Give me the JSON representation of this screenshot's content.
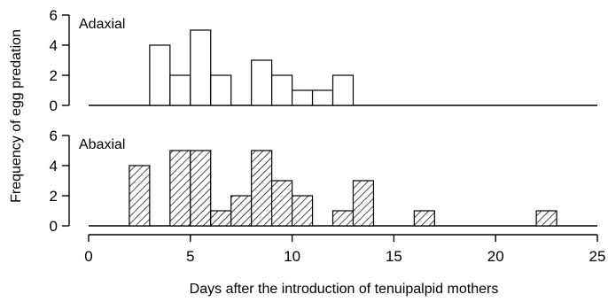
{
  "chart_data": {
    "type": "bar",
    "xlabel": "Days after the introduction of tenuipalpid mothers",
    "ylabel": "Frequency of egg predation",
    "xlim": [
      0,
      25
    ],
    "x_ticks": [
      0,
      5,
      10,
      15,
      20,
      25
    ],
    "ylim": [
      0,
      6
    ],
    "y_ticks": [
      0,
      2,
      4,
      6
    ],
    "bin_width": 1,
    "grid": false,
    "panels": [
      {
        "name": "Adaxial",
        "fill": "white",
        "bins": [
          {
            "x": 3,
            "count": 4
          },
          {
            "x": 4,
            "count": 2
          },
          {
            "x": 5,
            "count": 5
          },
          {
            "x": 6,
            "count": 2
          },
          {
            "x": 8,
            "count": 3
          },
          {
            "x": 9,
            "count": 2
          },
          {
            "x": 10,
            "count": 1
          },
          {
            "x": 11,
            "count": 1
          },
          {
            "x": 12,
            "count": 2
          }
        ]
      },
      {
        "name": "Abaxial",
        "fill": "hatched",
        "bins": [
          {
            "x": 2,
            "count": 4
          },
          {
            "x": 4,
            "count": 5
          },
          {
            "x": 5,
            "count": 5
          },
          {
            "x": 6,
            "count": 1
          },
          {
            "x": 7,
            "count": 2
          },
          {
            "x": 8,
            "count": 5
          },
          {
            "x": 9,
            "count": 3
          },
          {
            "x": 10,
            "count": 2
          },
          {
            "x": 12,
            "count": 1
          },
          {
            "x": 13,
            "count": 3
          },
          {
            "x": 16,
            "count": 1
          },
          {
            "x": 22,
            "count": 1
          }
        ]
      }
    ]
  }
}
